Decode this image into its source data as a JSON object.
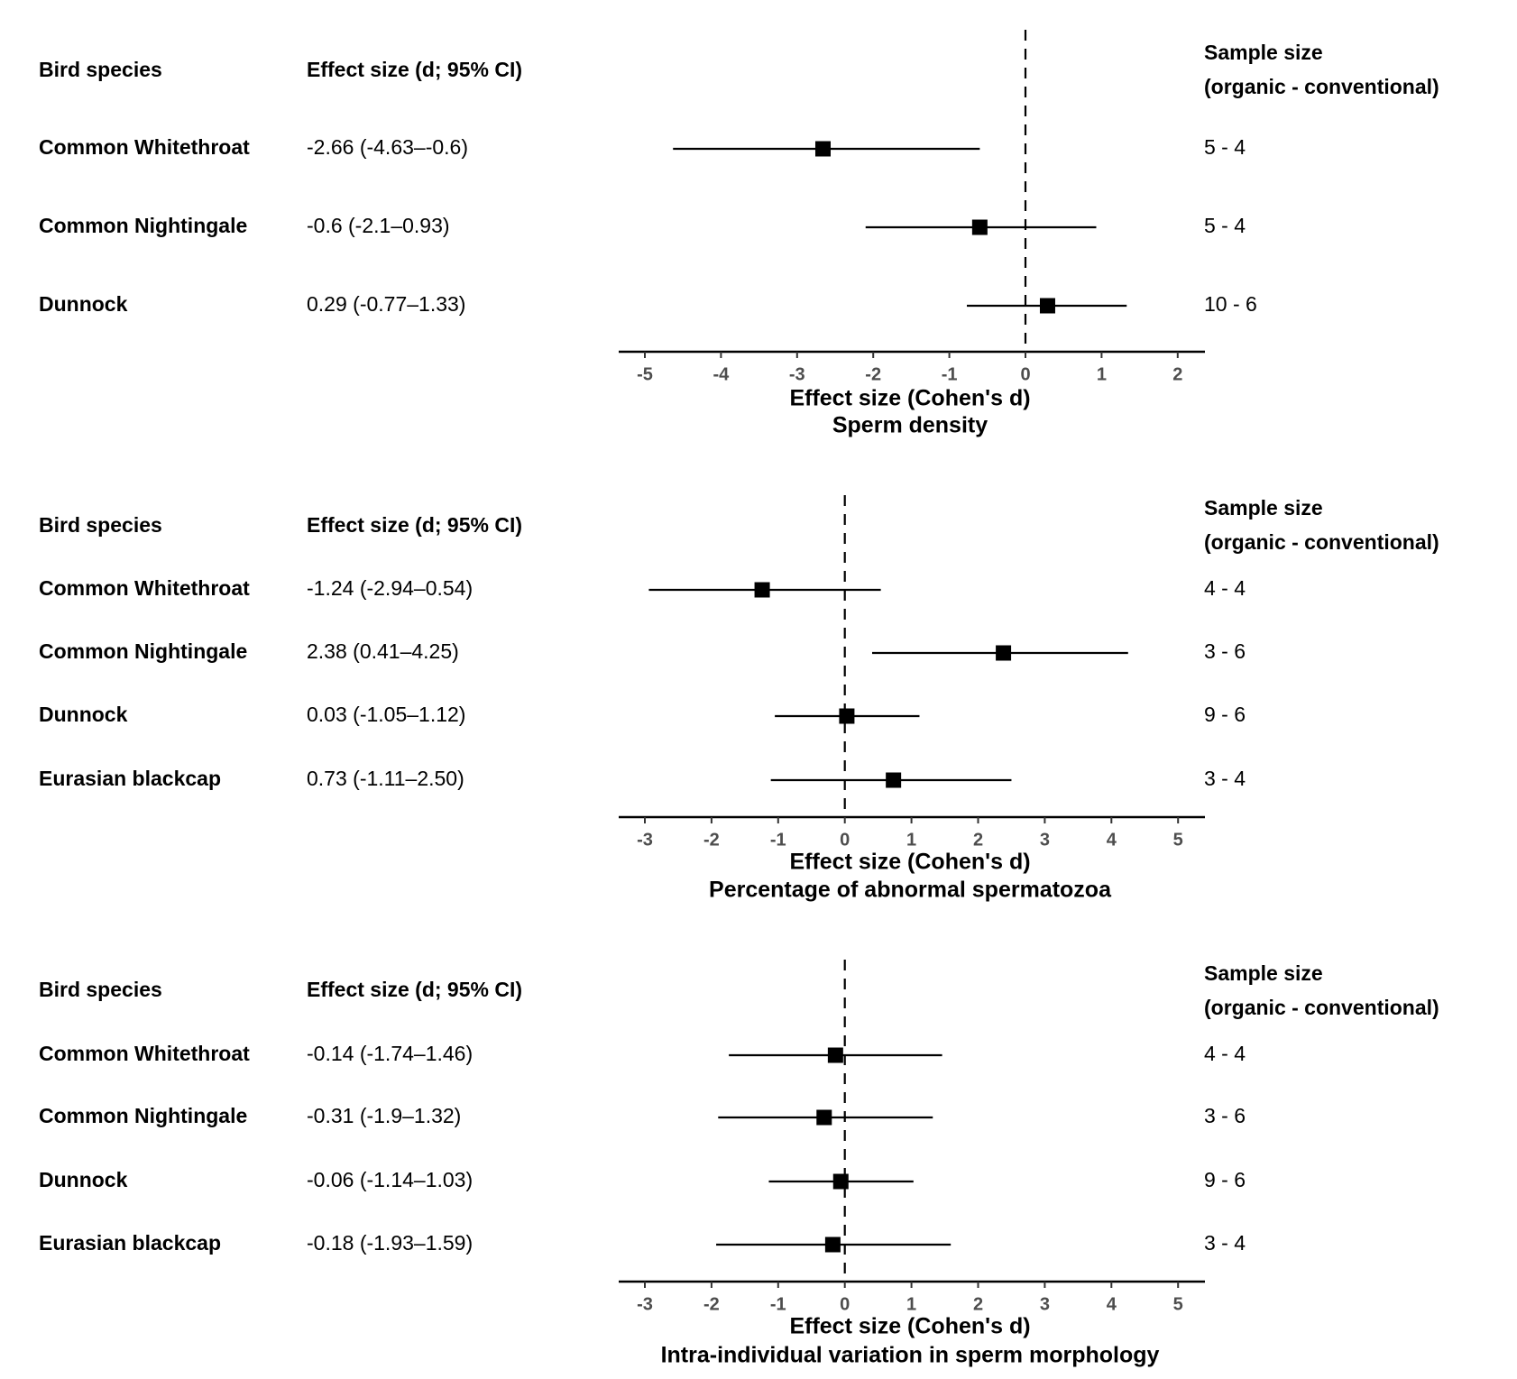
{
  "headers": {
    "species": "Bird species",
    "effect": "Effect size (d; 95% CI)",
    "sample_line1": "Sample size",
    "sample_line2": "(organic - conventional)"
  },
  "chart_data": [
    {
      "type": "forest",
      "title": "Sperm density",
      "xlabel": "Effect size (Cohen's d)",
      "xlim": [
        -5.35,
        2.35
      ],
      "xticks": [
        -5,
        -4,
        -3,
        -2,
        -1,
        0,
        1,
        2
      ],
      "reference_line": 0,
      "rows": [
        {
          "species": "Common Whitethroat",
          "label": "-2.66 (-4.63–-0.6)",
          "d": -2.66,
          "lo": -4.63,
          "hi": -0.6,
          "n": "5 - 4"
        },
        {
          "species": "Common Nightingale",
          "label": "-0.6 (-2.1–0.93)",
          "d": -0.6,
          "lo": -2.1,
          "hi": 0.93,
          "n": "5 - 4"
        },
        {
          "species": "Dunnock",
          "label": "0.29 (-0.77–1.33)",
          "d": 0.29,
          "lo": -0.77,
          "hi": 1.33,
          "n": "10 - 6"
        }
      ]
    },
    {
      "type": "forest",
      "title": "Percentage of abnormal spermatozoa",
      "xlabel": "Effect size (Cohen's d)",
      "xlim": [
        -3.4,
        5.4
      ],
      "xticks": [
        -3,
        -2,
        -1,
        0,
        1,
        2,
        3,
        4,
        5
      ],
      "reference_line": 0,
      "rows": [
        {
          "species": "Common Whitethroat",
          "label": "-1.24 (-2.94–0.54)",
          "d": -1.24,
          "lo": -2.94,
          "hi": 0.54,
          "n": "4 - 4"
        },
        {
          "species": "Common Nightingale",
          "label": "2.38 (0.41–4.25)",
          "d": 2.38,
          "lo": 0.41,
          "hi": 4.25,
          "n": "3 - 6"
        },
        {
          "species": "Dunnock",
          "label": "0.03 (-1.05–1.12)",
          "d": 0.03,
          "lo": -1.05,
          "hi": 1.12,
          "n": "9 - 6"
        },
        {
          "species": "Eurasian blackcap",
          "label": "0.73 (-1.11–2.50)",
          "d": 0.73,
          "lo": -1.11,
          "hi": 2.5,
          "n": "3 - 4"
        }
      ]
    },
    {
      "type": "forest",
      "title": "Intra-individual variation in sperm morphology",
      "xlabel": "Effect size (Cohen's d)",
      "xlim": [
        -3.4,
        5.4
      ],
      "xticks": [
        -3,
        -2,
        -1,
        0,
        1,
        2,
        3,
        4,
        5
      ],
      "reference_line": 0,
      "rows": [
        {
          "species": "Common Whitethroat",
          "label": "-0.14 (-1.74–1.46)",
          "d": -0.14,
          "lo": -1.74,
          "hi": 1.46,
          "n": "4 - 4"
        },
        {
          "species": "Common Nightingale",
          "label": "-0.31 (-1.9–1.32)",
          "d": -0.31,
          "lo": -1.9,
          "hi": 1.32,
          "n": "3 - 6"
        },
        {
          "species": "Dunnock",
          "label": "-0.06 (-1.14–1.03)",
          "d": -0.06,
          "lo": -1.14,
          "hi": 1.03,
          "n": "9 - 6"
        },
        {
          "species": "Eurasian blackcap",
          "label": "-0.18 (-1.93–1.59)",
          "d": -0.18,
          "lo": -1.93,
          "hi": 1.59,
          "n": "3 - 4"
        }
      ]
    }
  ]
}
